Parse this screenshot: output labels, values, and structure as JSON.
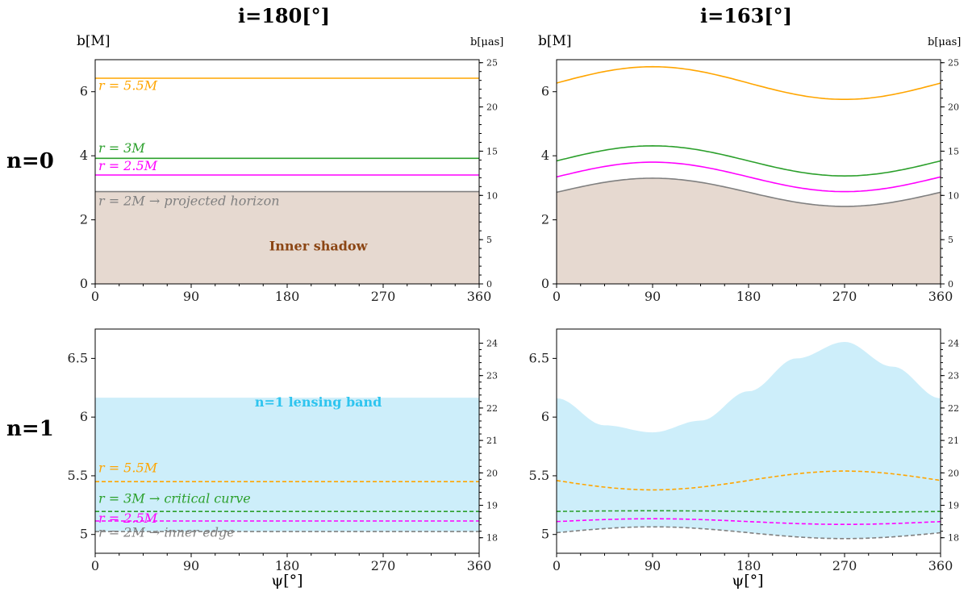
{
  "figure": {
    "col_titles": [
      "i=180[°]",
      "i=163[°]"
    ],
    "row_labels": [
      "n=0",
      "n=1"
    ],
    "left_unit": "b[M]",
    "right_unit": "b[μas]",
    "xlabel": "ψ[°]"
  },
  "colors": {
    "orange": "#ffa500",
    "green": "#2ca02c",
    "magenta": "#ff00ff",
    "gray": "#808080",
    "shadow_fill": "#e6d9d0",
    "band_fill": "#cdeefa",
    "shadow_text": "#8b4513",
    "band_text": "#2ec4ef"
  },
  "chart_data": [
    {
      "id": "p00",
      "type": "area",
      "ylim": [
        0,
        7
      ],
      "yticks": [
        0,
        2,
        4,
        6
      ],
      "y2ticks": [
        0,
        5,
        10,
        15,
        20,
        25
      ],
      "y2_factor": 3.62,
      "xlim": [
        0,
        360
      ],
      "xticks": [
        0,
        90,
        180,
        270,
        360
      ],
      "curves": [
        {
          "name": "r = 5.5M",
          "color": "#ffa500",
          "dash": false,
          "mean": 6.42,
          "amp": 0
        },
        {
          "name": "r = 3M",
          "color": "#2ca02c",
          "dash": false,
          "mean": 3.92,
          "amp": 0
        },
        {
          "name": "r = 2.5M",
          "color": "#ff00ff",
          "dash": false,
          "mean": 3.4,
          "amp": 0
        },
        {
          "name": "r = 2M → projected horizon",
          "color": "#808080",
          "dash": false,
          "mean": 2.88,
          "amp": 0,
          "fill_below": "#e6d9d0"
        }
      ],
      "annotations": [
        {
          "text": "r = 5.5M",
          "color": "#ffa500",
          "x": 3,
          "y": 6.05
        },
        {
          "text": "r = 3M",
          "color": "#2ca02c",
          "x": 3,
          "y": 4.1
        },
        {
          "text": "r = 2.5M",
          "color": "#ff00ff",
          "x": 3,
          "y": 3.55
        },
        {
          "text": "r = 2M → projected horizon",
          "color": "#808080",
          "x": 3,
          "y": 2.45
        },
        {
          "text": "Inner shadow",
          "color": "#8b4513",
          "x": 126,
          "y": 1.05,
          "bold": true
        }
      ]
    },
    {
      "id": "p01",
      "type": "area",
      "ylim": [
        0,
        7
      ],
      "yticks": [
        0,
        2,
        4,
        6
      ],
      "y2ticks": [
        0,
        5,
        10,
        15,
        20,
        25
      ],
      "y2_factor": 3.62,
      "xlim": [
        0,
        360
      ],
      "xticks": [
        0,
        90,
        180,
        270,
        360
      ],
      "curves": [
        {
          "name": "r = 5.5M",
          "color": "#ffa500",
          "dash": false,
          "mean": 6.27,
          "amp": 0.51
        },
        {
          "name": "r = 3M",
          "color": "#2ca02c",
          "dash": false,
          "mean": 3.84,
          "amp": 0.47
        },
        {
          "name": "r = 2.5M",
          "color": "#ff00ff",
          "dash": false,
          "mean": 3.34,
          "amp": 0.46
        },
        {
          "name": "r = 2M",
          "color": "#808080",
          "dash": false,
          "mean": 2.86,
          "amp": 0.44,
          "fill_below": "#e6d9d0"
        }
      ],
      "annotations": []
    },
    {
      "id": "p10",
      "type": "area",
      "ylim": [
        4.84,
        6.75
      ],
      "yticks": [
        5.0,
        5.5,
        6.0,
        6.5
      ],
      "y2ticks": [
        18,
        19,
        20,
        21,
        22,
        23,
        24
      ],
      "y2_factor": 3.62,
      "xlim": [
        0,
        360
      ],
      "xticks": [
        0,
        90,
        180,
        270,
        360
      ],
      "band": {
        "color": "#cdeefa",
        "upper_mean": 6.165,
        "upper_amp": 0,
        "lower": "r = 2M"
      },
      "curves": [
        {
          "name": "r = 5.5M",
          "color": "#ffa500",
          "dash": true,
          "mean": 5.45,
          "amp": 0
        },
        {
          "name": "r = 3M → critical curve",
          "color": "#2ca02c",
          "dash": true,
          "mean": 5.196,
          "amp": 0
        },
        {
          "name": "r = 2.5M",
          "color": "#ff00ff",
          "dash": true,
          "mean": 5.115,
          "amp": 0
        },
        {
          "name": "r = 2M → inner edge",
          "color": "#808080",
          "dash": true,
          "mean": 5.025,
          "amp": 0
        }
      ],
      "annotations": [
        {
          "text": "n=1 lensing band",
          "color": "#2ec4ef",
          "x": 126,
          "y": 6.09,
          "bold": true
        },
        {
          "text": "r = 5.5M",
          "color": "#ffa500",
          "x": 3,
          "y": 5.53
        },
        {
          "text": "r = 3M → critical curve",
          "color": "#2ca02c",
          "x": 3,
          "y": 5.27
        },
        {
          "text": "r = 2.5M",
          "color": "#ff00ff",
          "x": 3,
          "y": 5.1
        },
        {
          "text": "r = 2M → inner edge",
          "color": "#808080",
          "x": 3,
          "y": 4.98
        }
      ]
    },
    {
      "id": "p11",
      "type": "area",
      "ylim": [
        4.84,
        6.75
      ],
      "yticks": [
        5.0,
        5.5,
        6.0,
        6.5
      ],
      "y2ticks": [
        18,
        19,
        20,
        21,
        22,
        23,
        24
      ],
      "y2_factor": 3.62,
      "xlim": [
        0,
        360
      ],
      "xticks": [
        0,
        90,
        180,
        270,
        360
      ],
      "band": {
        "color": "#cdeefa",
        "upper_points": [
          [
            0,
            6.16
          ],
          [
            45,
            5.93
          ],
          [
            90,
            5.87
          ],
          [
            135,
            5.97
          ],
          [
            180,
            6.22
          ],
          [
            225,
            6.5
          ],
          [
            270,
            6.64
          ],
          [
            315,
            6.43
          ],
          [
            360,
            6.16
          ]
        ],
        "lower": "r = 2M"
      },
      "curves": [
        {
          "name": "r = 5.5M",
          "color": "#ffa500",
          "dash": true,
          "mean": 5.46,
          "amp": -0.08
        },
        {
          "name": "r = 3M",
          "color": "#2ca02c",
          "dash": true,
          "mean": 5.196,
          "amp": 0.006
        },
        {
          "name": "r = 2.5M",
          "color": "#ff00ff",
          "dash": true,
          "mean": 5.11,
          "amp": 0.024
        },
        {
          "name": "r = 2M",
          "color": "#808080",
          "dash": true,
          "mean": 5.015,
          "amp": 0.05
        }
      ],
      "annotations": []
    }
  ]
}
